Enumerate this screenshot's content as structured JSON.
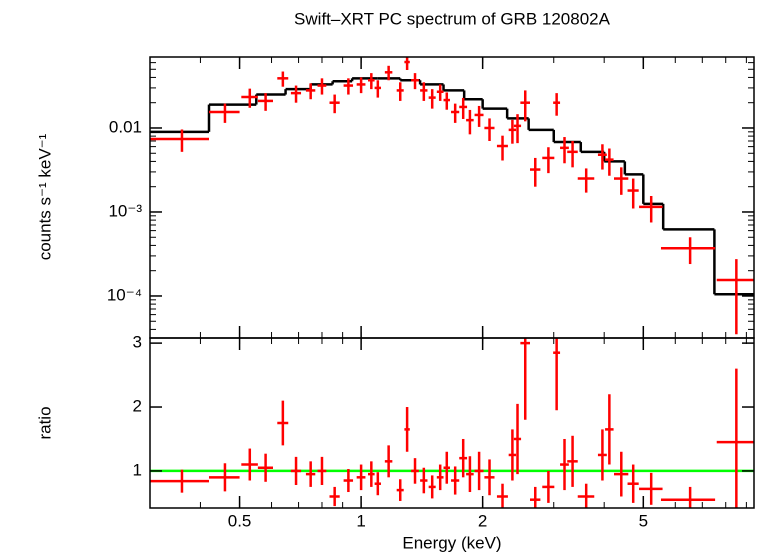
{
  "chart_data": [
    {
      "type": "errorbar",
      "title": "Swift–XRT PC spectrum of GRB 120802A",
      "ylabel": "counts s⁻¹ keV⁻¹",
      "xscale": "log",
      "yscale": "log",
      "xlim": [
        0.3,
        9.4
      ],
      "ylim": [
        3.16e-05,
        0.07
      ],
      "xticks": [
        0.5,
        1,
        2,
        5
      ],
      "yticks": [
        0.01,
        {
          "value": 0.001,
          "label": "10⁻³"
        },
        {
          "value": 0.0001,
          "label": "10⁻⁴"
        }
      ],
      "color": "#ff0000",
      "x": [
        0.36,
        0.46,
        0.53,
        0.58,
        0.64,
        0.69,
        0.75,
        0.8,
        0.86,
        0.93,
        1.0,
        1.06,
        1.1,
        1.17,
        1.25,
        1.3,
        1.36,
        1.43,
        1.5,
        1.57,
        1.63,
        1.71,
        1.79,
        1.86,
        1.96,
        2.08,
        2.24,
        2.37,
        2.44,
        2.55,
        2.7,
        2.91,
        3.05,
        3.19,
        3.34,
        3.61,
        3.96,
        4.12,
        4.41,
        4.72,
        5.23,
        6.53,
        8.5
      ],
      "xerr": [
        0.06,
        0.04,
        0.025,
        0.025,
        0.02,
        0.02,
        0.02,
        0.02,
        0.025,
        0.025,
        0.025,
        0.02,
        0.02,
        0.025,
        0.025,
        0.02,
        0.03,
        0.03,
        0.03,
        0.03,
        0.03,
        0.04,
        0.04,
        0.04,
        0.05,
        0.06,
        0.07,
        0.05,
        0.05,
        0.07,
        0.08,
        0.1,
        0.06,
        0.08,
        0.1,
        0.17,
        0.1,
        0.1,
        0.18,
        0.15,
        0.35,
        1.0,
        0.9
      ],
      "values": [
        0.0074,
        0.0155,
        0.0234,
        0.021,
        0.039,
        0.026,
        0.028,
        0.032,
        0.02,
        0.032,
        0.033,
        0.037,
        0.03,
        0.046,
        0.028,
        0.061,
        0.037,
        0.028,
        0.023,
        0.027,
        0.0215,
        0.0155,
        0.0178,
        0.0124,
        0.0143,
        0.01,
        0.0061,
        0.0095,
        0.0106,
        0.02,
        0.0032,
        0.0044,
        0.02,
        0.0058,
        0.0052,
        0.0025,
        0.0048,
        0.0042,
        0.0025,
        0.0018,
        0.00115,
        0.00037,
        0.000155
      ],
      "yerr": [
        0.0022,
        0.004,
        0.006,
        0.005,
        0.008,
        0.006,
        0.006,
        0.007,
        0.005,
        0.007,
        0.007,
        0.008,
        0.007,
        0.009,
        0.007,
        0.012,
        0.008,
        0.007,
        0.006,
        0.006,
        0.005,
        0.004,
        0.005,
        0.004,
        0.004,
        0.003,
        0.002,
        0.003,
        0.004,
        0.008,
        0.0012,
        0.0015,
        0.006,
        0.002,
        0.0018,
        0.0008,
        0.0016,
        0.0015,
        0.0009,
        0.0007,
        0.0004,
        0.00013,
        0.00012
      ],
      "model": {
        "color": "#000000",
        "edges": [
          0.3,
          0.42,
          0.55,
          0.65,
          0.75,
          0.85,
          0.95,
          1.1,
          1.25,
          1.4,
          1.6,
          1.8,
          2.0,
          2.3,
          2.6,
          3.0,
          3.5,
          4.0,
          4.5,
          5.0,
          5.6,
          7.5,
          9.4
        ],
        "values": [
          0.009,
          0.019,
          0.025,
          0.029,
          0.033,
          0.036,
          0.039,
          0.039,
          0.037,
          0.033,
          0.028,
          0.022,
          0.017,
          0.013,
          0.0095,
          0.0068,
          0.0052,
          0.004,
          0.0028,
          0.00125,
          0.00062,
          0.000105
        ]
      }
    },
    {
      "type": "errorbar",
      "xlabel": "Energy (keV)",
      "ylabel": "ratio",
      "xscale": "log",
      "xlim": [
        0.3,
        9.4
      ],
      "ylim": [
        0.42,
        3.08
      ],
      "xticks": [
        0.5,
        1,
        2,
        5
      ],
      "yticks": [
        1,
        2,
        3
      ],
      "color": "#ff0000",
      "reference": 1,
      "reference_color": "#00ff00",
      "x": [
        0.36,
        0.46,
        0.53,
        0.58,
        0.64,
        0.69,
        0.75,
        0.8,
        0.86,
        0.93,
        1.0,
        1.06,
        1.1,
        1.17,
        1.25,
        1.3,
        1.36,
        1.43,
        1.5,
        1.57,
        1.63,
        1.71,
        1.79,
        1.86,
        1.96,
        2.08,
        2.24,
        2.37,
        2.44,
        2.55,
        2.7,
        2.91,
        3.05,
        3.19,
        3.34,
        3.61,
        3.96,
        4.12,
        4.41,
        4.72,
        5.23,
        6.53,
        8.5
      ],
      "xerr": [
        0.06,
        0.04,
        0.025,
        0.025,
        0.02,
        0.02,
        0.02,
        0.02,
        0.025,
        0.025,
        0.025,
        0.02,
        0.02,
        0.025,
        0.025,
        0.02,
        0.03,
        0.03,
        0.03,
        0.03,
        0.03,
        0.04,
        0.04,
        0.04,
        0.05,
        0.06,
        0.07,
        0.05,
        0.05,
        0.07,
        0.08,
        0.1,
        0.06,
        0.08,
        0.1,
        0.17,
        0.1,
        0.1,
        0.18,
        0.15,
        0.35,
        1.0,
        0.9
      ],
      "values": [
        0.84,
        0.9,
        1.1,
        1.05,
        1.75,
        1.0,
        0.95,
        1.0,
        0.6,
        0.85,
        0.9,
        0.95,
        0.8,
        1.15,
        0.7,
        1.65,
        1.0,
        0.85,
        0.75,
        0.9,
        1.05,
        0.85,
        1.2,
        0.95,
        1.0,
        0.9,
        0.6,
        1.25,
        1.5,
        3.0,
        0.55,
        0.75,
        2.85,
        1.1,
        1.15,
        0.6,
        1.25,
        1.65,
        0.95,
        0.8,
        0.72,
        0.55,
        1.45
      ],
      "yerr": [
        0.18,
        0.22,
        0.25,
        0.22,
        0.35,
        0.22,
        0.2,
        0.22,
        0.15,
        0.18,
        0.2,
        0.2,
        0.18,
        0.25,
        0.17,
        0.35,
        0.2,
        0.2,
        0.18,
        0.2,
        0.25,
        0.22,
        0.3,
        0.28,
        0.3,
        0.28,
        0.2,
        0.4,
        0.55,
        1.2,
        0.2,
        0.25,
        0.9,
        0.4,
        0.4,
        0.2,
        0.4,
        0.55,
        0.35,
        0.3,
        0.25,
        0.2,
        1.15
      ]
    }
  ]
}
